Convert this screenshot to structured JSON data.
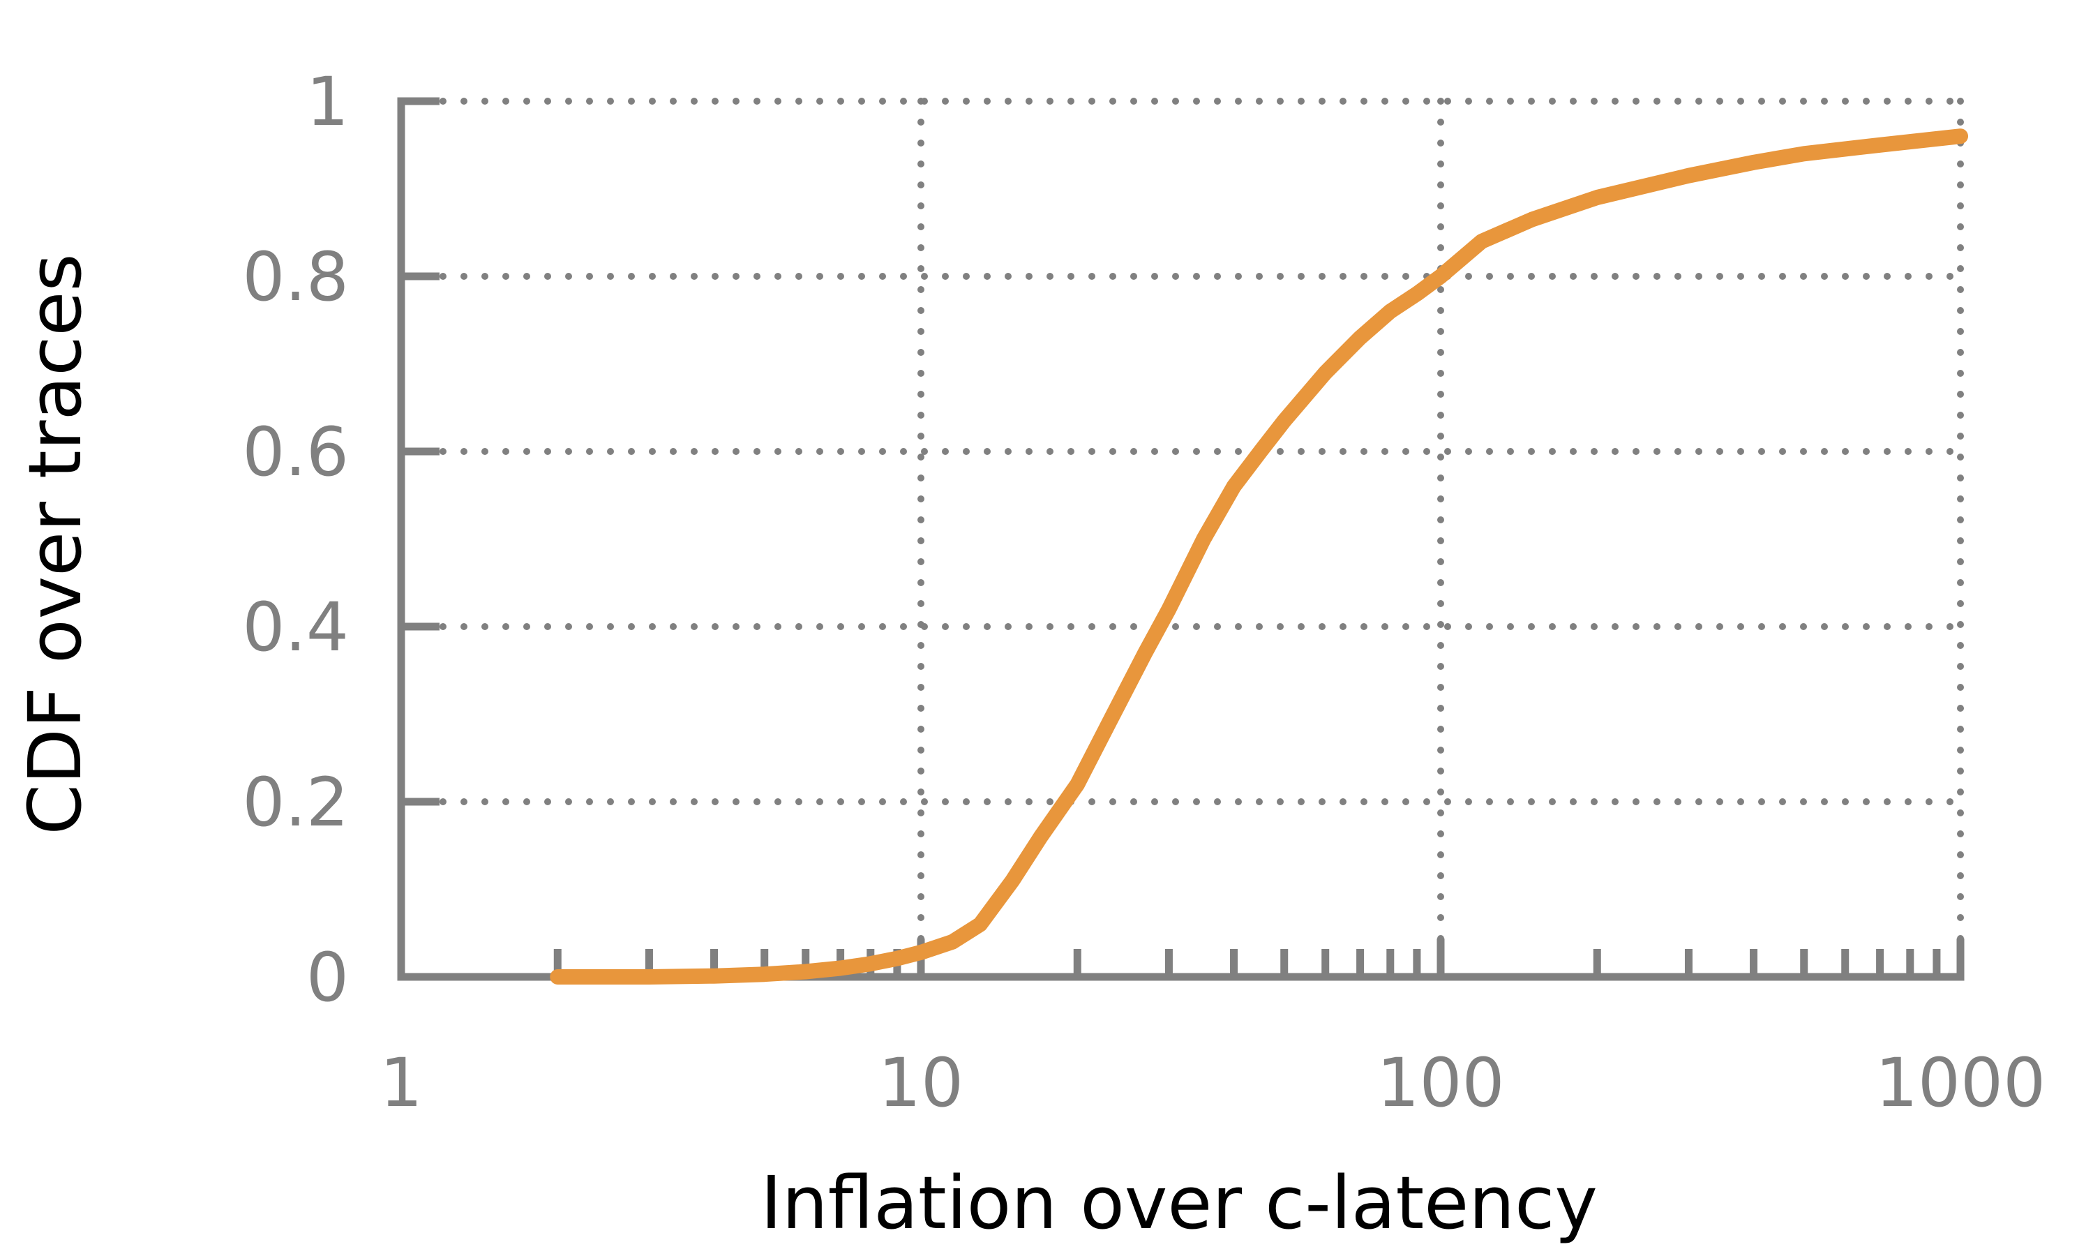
{
  "chart_data": {
    "type": "line",
    "title": "",
    "xlabel": "Inflation over c-latency",
    "ylabel": "CDF over traces",
    "x_scale": "log",
    "xlim": [
      1,
      1000
    ],
    "ylim": [
      0,
      1
    ],
    "grid": true,
    "x_ticks": [
      {
        "value": 1,
        "label": "1"
      },
      {
        "value": 10,
        "label": "10"
      },
      {
        "value": 100,
        "label": "100"
      },
      {
        "value": 1000,
        "label": "1000"
      }
    ],
    "y_ticks": [
      {
        "value": 0,
        "label": "0"
      },
      {
        "value": 0.2,
        "label": "0.2"
      },
      {
        "value": 0.4,
        "label": "0.4"
      },
      {
        "value": 0.6,
        "label": "0.6"
      },
      {
        "value": 0.8,
        "label": "0.8"
      },
      {
        "value": 1,
        "label": "1"
      }
    ],
    "series": [
      {
        "color": "#E8963C",
        "points": [
          {
            "x": 2,
            "y": 0.0
          },
          {
            "x": 3,
            "y": 0.0
          },
          {
            "x": 4,
            "y": 0.001
          },
          {
            "x": 5,
            "y": 0.003
          },
          {
            "x": 6,
            "y": 0.006
          },
          {
            "x": 7,
            "y": 0.01
          },
          {
            "x": 8,
            "y": 0.015
          },
          {
            "x": 9,
            "y": 0.021
          },
          {
            "x": 10,
            "y": 0.028
          },
          {
            "x": 11.5,
            "y": 0.04
          },
          {
            "x": 13,
            "y": 0.06
          },
          {
            "x": 15,
            "y": 0.11
          },
          {
            "x": 17,
            "y": 0.16
          },
          {
            "x": 20,
            "y": 0.22
          },
          {
            "x": 23,
            "y": 0.29
          },
          {
            "x": 27,
            "y": 0.37
          },
          {
            "x": 30,
            "y": 0.42
          },
          {
            "x": 35,
            "y": 0.5
          },
          {
            "x": 40,
            "y": 0.56
          },
          {
            "x": 45,
            "y": 0.6
          },
          {
            "x": 50,
            "y": 0.635
          },
          {
            "x": 60,
            "y": 0.69
          },
          {
            "x": 70,
            "y": 0.73
          },
          {
            "x": 80,
            "y": 0.76
          },
          {
            "x": 90,
            "y": 0.78
          },
          {
            "x": 100,
            "y": 0.8
          },
          {
            "x": 120,
            "y": 0.84
          },
          {
            "x": 150,
            "y": 0.865
          },
          {
            "x": 200,
            "y": 0.89
          },
          {
            "x": 300,
            "y": 0.915
          },
          {
            "x": 400,
            "y": 0.93
          },
          {
            "x": 500,
            "y": 0.94
          },
          {
            "x": 700,
            "y": 0.95
          },
          {
            "x": 1000,
            "y": 0.96
          }
        ]
      }
    ]
  },
  "style": {
    "axis_color": "#808080",
    "grid_color": "#808080",
    "line_color": "#E8963C"
  }
}
